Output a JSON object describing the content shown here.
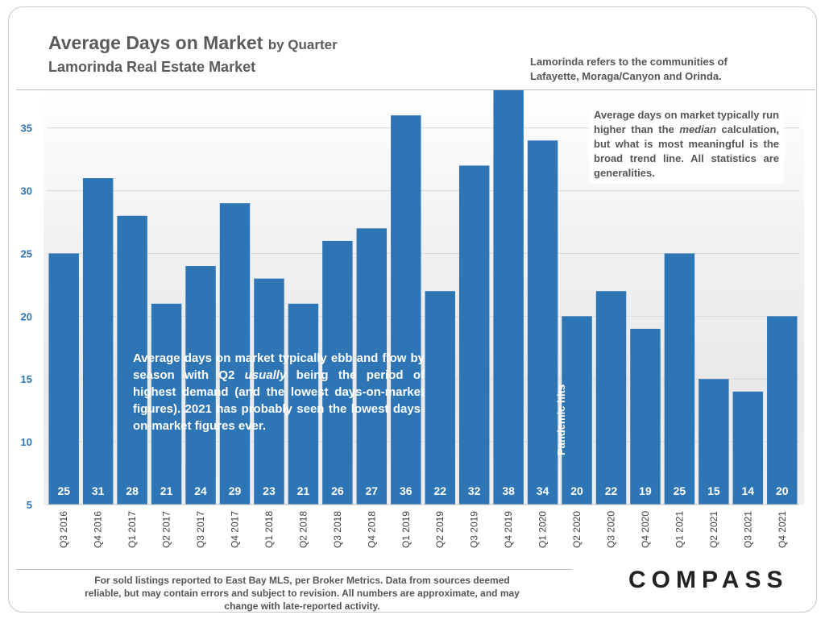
{
  "header": {
    "title_main": "Average Days on Market",
    "title_suffix": "by Quarter",
    "subtitle": "Lamorinda Real Estate Market",
    "note": "Lamorinda refers to the communities of Lafayette, Moraga/Canyon and Orinda."
  },
  "callouts": {
    "right_part1": "Average days on market typically run higher than the ",
    "right_emph": "median",
    "right_part2": " calculation, but what is most meaningful is the broad trend line. All statistics are generalities.",
    "left_part1": "Average days on market typically ebb and flow by season with Q2 ",
    "left_emph": "usually",
    "left_part2": " being the period of highest demand (and the lowest days-on-market figures). 2021 has probably seen the lowest days-on-market figures ever.",
    "pandemic": "Pandemic hits"
  },
  "footer": {
    "text": "For sold listings reported to East Bay MLS, per Broker Metrics. Data from sources deemed reliable, but may contain errors and subject to revision. All numbers are approximate, and may change with late-reported activity.",
    "logo": "COMPASS"
  },
  "colors": {
    "bar": "#2e75b6",
    "axis_text": "#2e75b6",
    "grid": "#d9d9d9"
  },
  "chart_data": {
    "type": "bar",
    "title": "Average Days on Market by Quarter",
    "xlabel": "",
    "ylabel": "",
    "ylim": [
      5,
      38
    ],
    "yticks": [
      5,
      10,
      15,
      20,
      25,
      30,
      35
    ],
    "categories": [
      "Q3 2016",
      "Q4 2016",
      "Q1 2017",
      "Q2 2017",
      "Q3 2017",
      "Q4 2017",
      "Q1 2018",
      "Q2 2018",
      "Q3 2018",
      "Q4 2018",
      "Q1 2019",
      "Q2 2019",
      "Q3 2019",
      "Q4 2019",
      "Q1 2020",
      "Q2 2020",
      "Q3 2020",
      "Q4 2020",
      "Q1 2021",
      "Q2 2021",
      "Q3 2021",
      "Q4 2021"
    ],
    "values": [
      25,
      31,
      28,
      21,
      24,
      29,
      23,
      21,
      26,
      27,
      36,
      22,
      32,
      38,
      34,
      20,
      22,
      19,
      25,
      15,
      14,
      20
    ]
  }
}
